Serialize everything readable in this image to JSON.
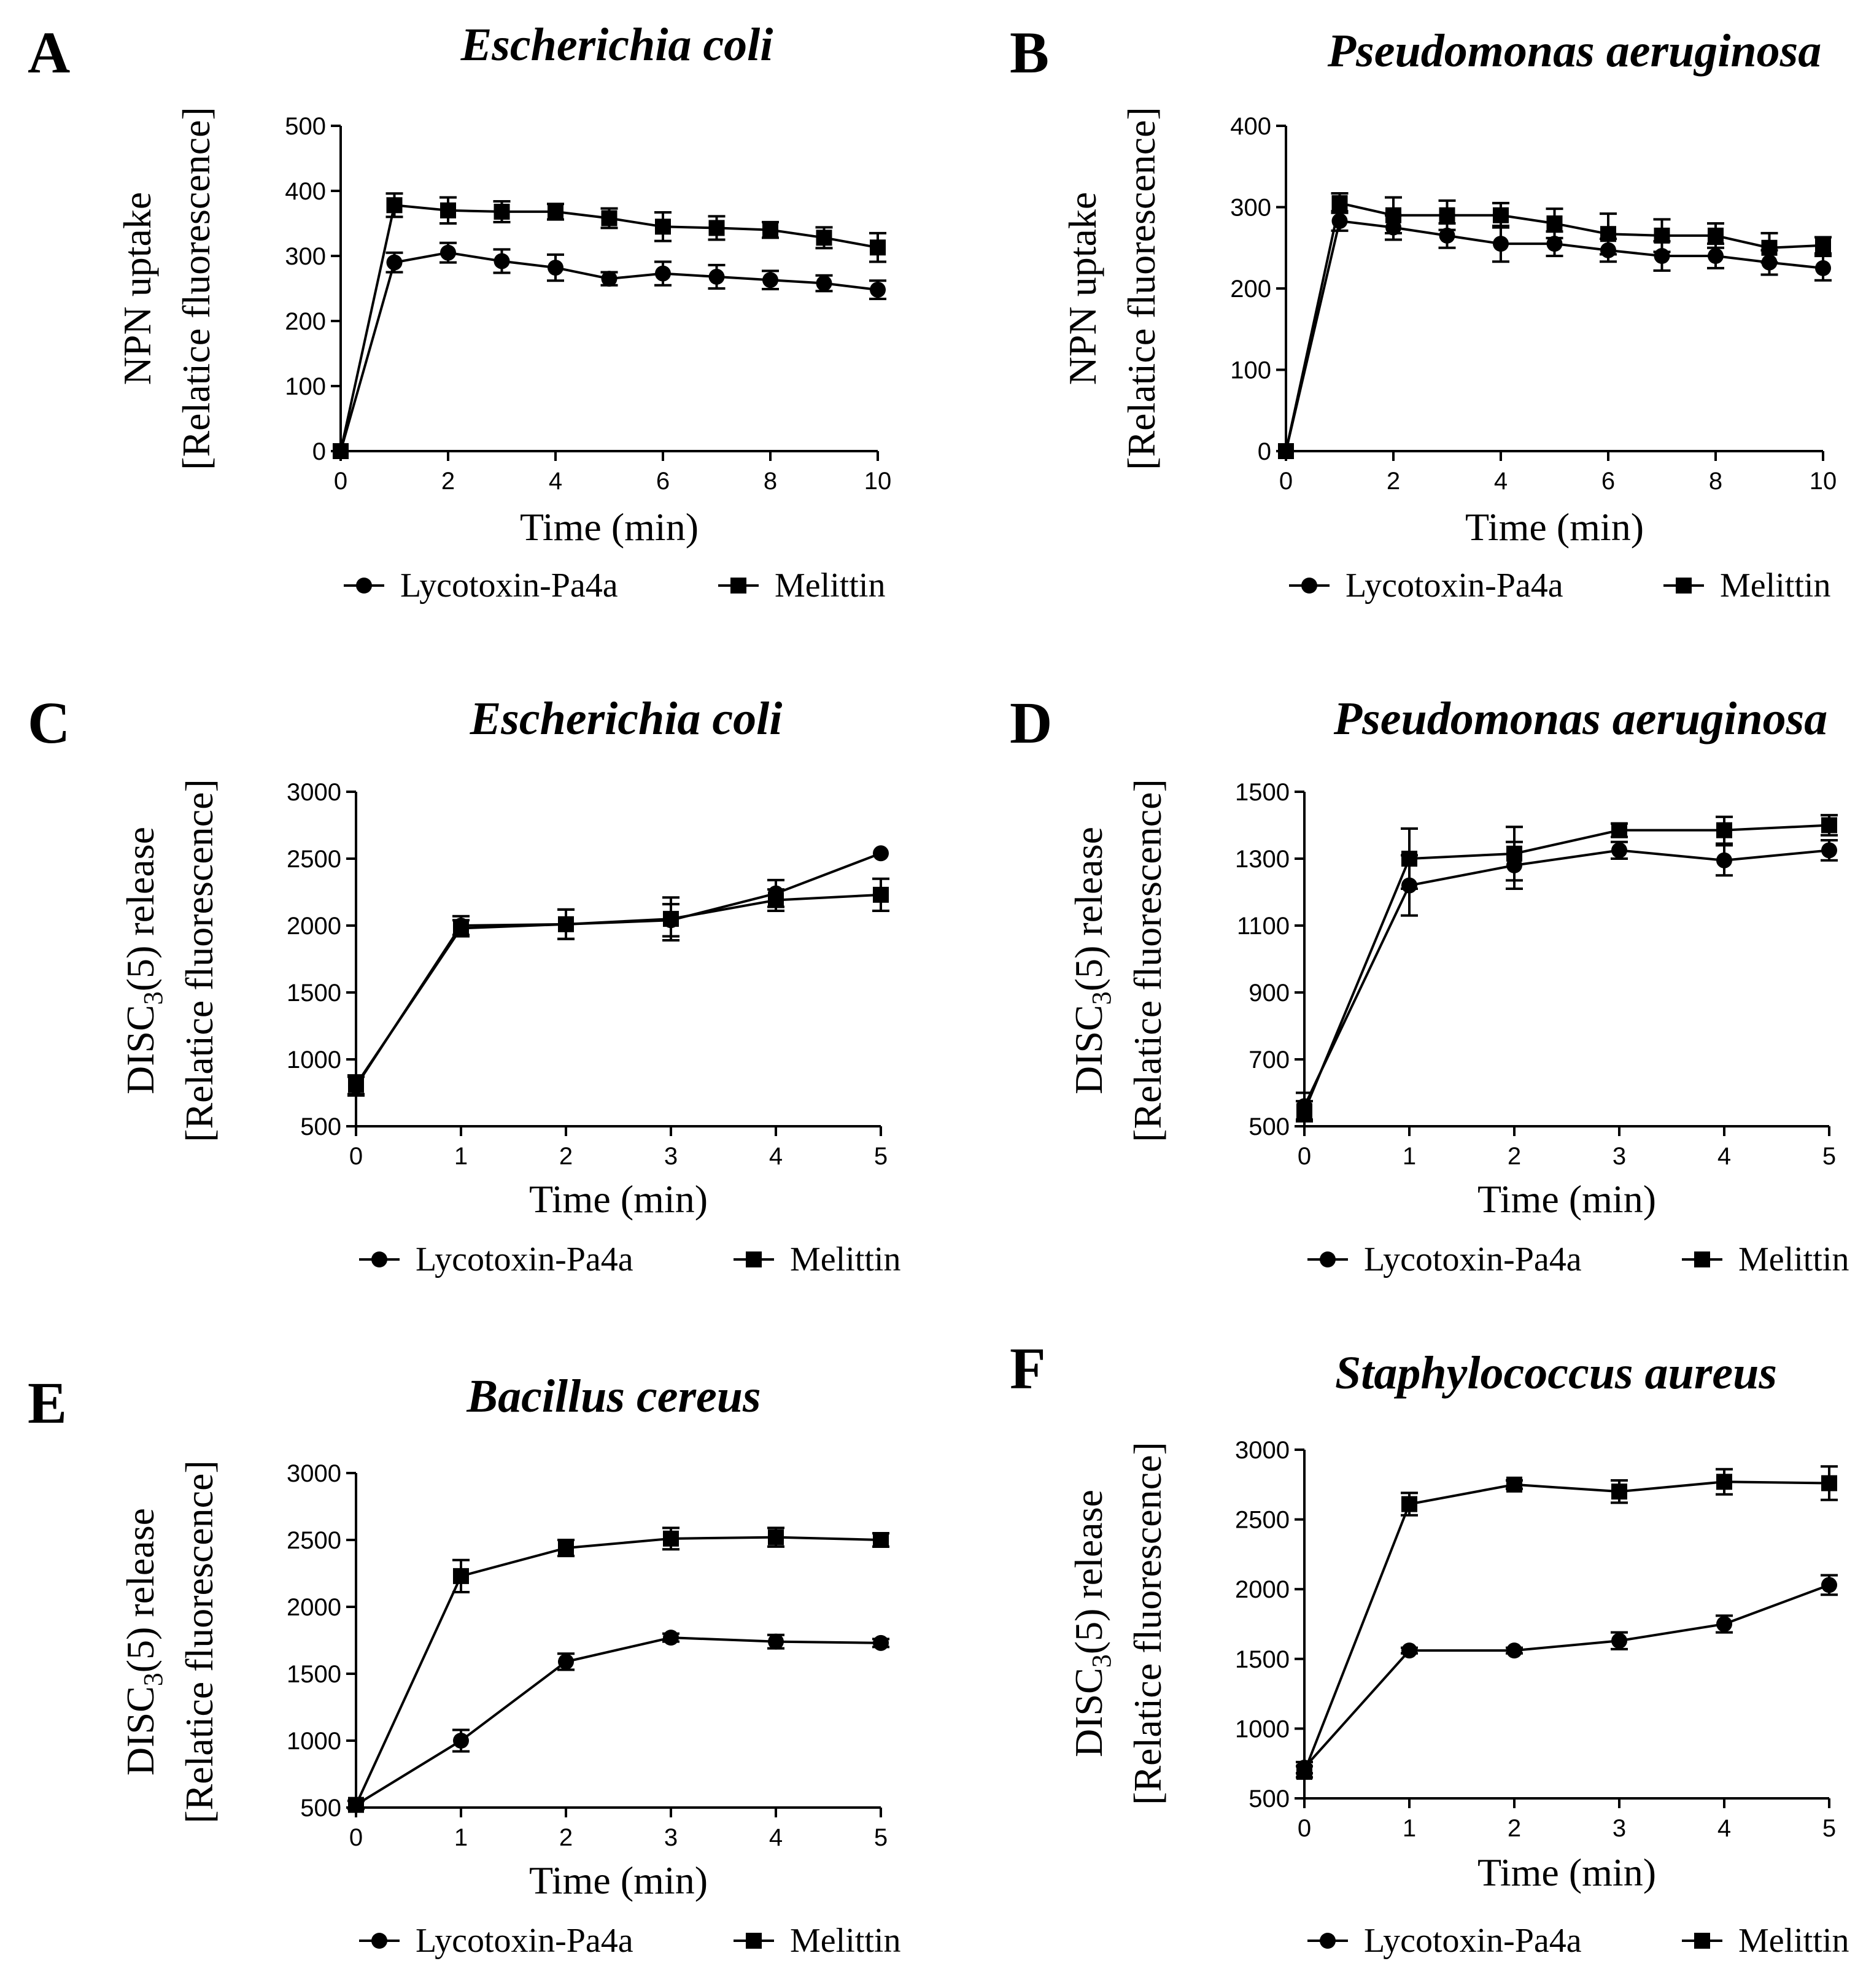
{
  "figure": {
    "legend_series": [
      "Lycotoxin-Pa4a",
      "Melittin"
    ],
    "marker_shapes": [
      "circle",
      "square"
    ],
    "color": "#000000"
  },
  "chart_data": [
    {
      "panel": "A",
      "type": "line",
      "title": "Escherichia coli",
      "ylabel_lines": [
        "NPN uptake",
        "[Relatice fluorescence]"
      ],
      "xlabel": "Time (min)",
      "xlim": [
        0,
        10
      ],
      "ylim": [
        0,
        500
      ],
      "xticks": [
        0,
        2,
        4,
        6,
        8,
        10
      ],
      "yticks": [
        0,
        100,
        200,
        300,
        400,
        500
      ],
      "x": [
        0,
        1,
        2,
        3,
        4,
        5,
        6,
        7,
        8,
        9,
        10
      ],
      "series": [
        {
          "name": "Lycotoxin-Pa4a",
          "marker": "circle",
          "values": [
            0,
            290,
            305,
            292,
            282,
            265,
            273,
            268,
            263,
            258,
            248
          ],
          "errors": [
            0,
            15,
            15,
            18,
            20,
            10,
            18,
            18,
            14,
            12,
            14
          ]
        },
        {
          "name": "Melittin",
          "marker": "square",
          "values": [
            0,
            378,
            370,
            368,
            368,
            358,
            345,
            343,
            340,
            328,
            313
          ],
          "errors": [
            0,
            18,
            20,
            16,
            12,
            15,
            22,
            18,
            12,
            16,
            22
          ]
        }
      ]
    },
    {
      "panel": "B",
      "type": "line",
      "title": "Pseudomonas aeruginosa",
      "ylabel_lines": [
        "NPN uptake",
        "[Relatice fluorescence]"
      ],
      "xlabel": "Time (min)",
      "xlim": [
        0,
        10
      ],
      "ylim": [
        0,
        400
      ],
      "xticks": [
        0,
        2,
        4,
        6,
        8,
        10
      ],
      "yticks": [
        0,
        100,
        200,
        300,
        400
      ],
      "x": [
        0,
        1,
        2,
        3,
        4,
        5,
        6,
        7,
        8,
        9,
        10
      ],
      "series": [
        {
          "name": "Lycotoxin-Pa4a",
          "marker": "circle",
          "values": [
            0,
            283,
            275,
            265,
            255,
            255,
            247,
            240,
            240,
            232,
            225
          ],
          "errors": [
            0,
            12,
            15,
            15,
            22,
            15,
            14,
            18,
            15,
            15,
            15
          ]
        },
        {
          "name": "Melittin",
          "marker": "square",
          "values": [
            0,
            305,
            290,
            290,
            290,
            280,
            267,
            265,
            265,
            250,
            253
          ],
          "errors": [
            0,
            12,
            22,
            18,
            15,
            18,
            25,
            20,
            15,
            18,
            10
          ]
        }
      ]
    },
    {
      "panel": "C",
      "type": "line",
      "title": "Escherichia coli",
      "ylabel_lines": [
        "DISC(5) release",
        "[Relatice fluorescence]"
      ],
      "ylabel_subscript": "3",
      "xlabel": "Time (min)",
      "xlim": [
        0,
        5
      ],
      "ylim": [
        500,
        3000
      ],
      "xticks": [
        0,
        1,
        2,
        3,
        4,
        5
      ],
      "yticks": [
        500,
        1000,
        1500,
        2000,
        2500,
        3000
      ],
      "x": [
        0,
        1,
        2,
        3,
        4,
        5
      ],
      "series": [
        {
          "name": "Lycotoxin-Pa4a",
          "marker": "circle",
          "values": [
            800,
            2000,
            2010,
            2040,
            2240,
            2540
          ],
          "errors": [
            70,
            70,
            110,
            120,
            100,
            0
          ]
        },
        {
          "name": "Melittin",
          "marker": "square",
          "values": [
            810,
            1980,
            2010,
            2050,
            2190,
            2230
          ],
          "errors": [
            70,
            60,
            110,
            160,
            80,
            120
          ]
        }
      ]
    },
    {
      "panel": "D",
      "type": "line",
      "title": "Pseudomonas aeruginosa",
      "ylabel_lines": [
        "DISC(5) release",
        "[Relatice fluorescence]"
      ],
      "ylabel_subscript": "3",
      "xlabel": "Time (min)",
      "xlim": [
        0,
        5
      ],
      "ylim": [
        500,
        1500
      ],
      "xticks": [
        0,
        1,
        2,
        3,
        4,
        5
      ],
      "yticks": [
        500,
        700,
        900,
        1100,
        1300,
        1500
      ],
      "x": [
        0,
        1,
        2,
        3,
        4,
        5
      ],
      "series": [
        {
          "name": "Lycotoxin-Pa4a",
          "marker": "circle",
          "values": [
            560,
            1220,
            1280,
            1325,
            1295,
            1325
          ],
          "errors": [
            40,
            90,
            70,
            25,
            45,
            30
          ]
        },
        {
          "name": "Melittin",
          "marker": "square",
          "values": [
            545,
            1300,
            1315,
            1385,
            1385,
            1400
          ],
          "errors": [
            30,
            90,
            80,
            20,
            40,
            30
          ]
        }
      ]
    },
    {
      "panel": "E",
      "type": "line",
      "title": "Bacillus cereus",
      "ylabel_lines": [
        "DISC(5) release",
        "[Relatice fluorescence]"
      ],
      "ylabel_subscript": "3",
      "xlabel": "Time (min)",
      "xlim": [
        0,
        5
      ],
      "ylim": [
        500,
        3000
      ],
      "xticks": [
        0,
        1,
        2,
        3,
        4,
        5
      ],
      "yticks": [
        500,
        1000,
        1500,
        2000,
        2500,
        3000
      ],
      "x": [
        0,
        1,
        2,
        3,
        4,
        5
      ],
      "series": [
        {
          "name": "Lycotoxin-Pa4a",
          "marker": "circle",
          "values": [
            520,
            1000,
            1590,
            1770,
            1740,
            1730
          ],
          "errors": [
            30,
            80,
            60,
            30,
            50,
            30
          ]
        },
        {
          "name": "Melittin",
          "marker": "square",
          "values": [
            520,
            2230,
            2440,
            2510,
            2520,
            2500
          ],
          "errors": [
            30,
            120,
            60,
            80,
            70,
            50
          ]
        }
      ]
    },
    {
      "panel": "F",
      "type": "line",
      "title": "Staphylococcus aureus",
      "ylabel_lines": [
        "DISC(5) release",
        "[Relatice fluorescence]"
      ],
      "ylabel_subscript": "3",
      "xlabel": "Time (min)",
      "xlim": [
        0,
        5
      ],
      "ylim": [
        500,
        3000
      ],
      "xticks": [
        0,
        1,
        2,
        3,
        4,
        5
      ],
      "yticks": [
        500,
        1000,
        1500,
        2000,
        2500,
        3000
      ],
      "x": [
        0,
        1,
        2,
        3,
        4,
        5
      ],
      "series": [
        {
          "name": "Lycotoxin-Pa4a",
          "marker": "circle",
          "values": [
            720,
            1560,
            1560,
            1630,
            1750,
            2030
          ],
          "errors": [
            40,
            20,
            20,
            60,
            60,
            70
          ]
        },
        {
          "name": "Melittin",
          "marker": "square",
          "values": [
            690,
            2610,
            2750,
            2700,
            2770,
            2760
          ],
          "errors": [
            40,
            80,
            30,
            80,
            90,
            120
          ]
        }
      ]
    }
  ]
}
